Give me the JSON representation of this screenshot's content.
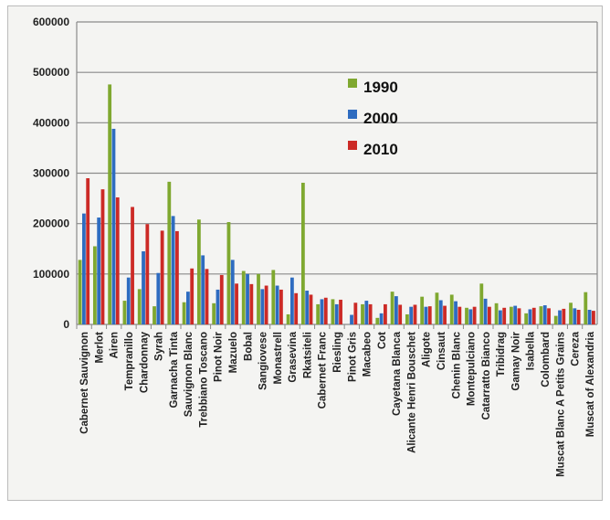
{
  "chart_data": {
    "type": "bar",
    "title": "",
    "xlabel": "",
    "ylabel": "",
    "ylim": [
      0,
      600000
    ],
    "yticks": [
      "0",
      "100000",
      "200000",
      "300000",
      "400000",
      "500000",
      "600000"
    ],
    "grid": true,
    "legend_position": "top-center",
    "categories": [
      "Cabernet Sauvignon",
      "Merlot",
      "Airen",
      "Tempranillo",
      "Chardonnay",
      "Syrah",
      "Garnacha Tinta",
      "Sauvignon Blanc",
      "Trebbiano Toscano",
      "Pinot Noir",
      "Mazuelo",
      "Bobal",
      "Sangiovese",
      "Monastrell",
      "Grasevina",
      "Rkatsiteli",
      "Cabernet Franc",
      "Riesling",
      "Pinot Gris",
      "Macabeo",
      "Cot",
      "Cayetana Blanca",
      "Alicante Henri Bouschet",
      "Aligote",
      "Cinsaut",
      "Chenin Blanc",
      "Montepulciano",
      "Catarratto Bianco",
      "Tribidrag",
      "Gamay Noir",
      "Isabella",
      "Colombard",
      "Muscat Blanc A Petits Grains",
      "Cereza",
      "Muscat of Alexandria"
    ],
    "series": [
      {
        "name": "1990",
        "color": "#7fa830",
        "values": [
          128000,
          155000,
          476000,
          47000,
          70000,
          36000,
          283000,
          44000,
          208000,
          42000,
          203000,
          106000,
          100000,
          108000,
          20000,
          281000,
          40000,
          50000,
          0,
          40000,
          13000,
          65000,
          20000,
          55000,
          63000,
          59000,
          33000,
          81000,
          42000,
          35000,
          22000,
          36000,
          17000,
          43000,
          64000
        ]
      },
      {
        "name": "2000",
        "color": "#2e6cc0",
        "values": [
          220000,
          212000,
          388000,
          93000,
          145000,
          102000,
          215000,
          65000,
          137000,
          69000,
          128000,
          100000,
          70000,
          77000,
          93000,
          67000,
          50000,
          40000,
          19000,
          47000,
          22000,
          56000,
          35000,
          35000,
          48000,
          46000,
          30000,
          51000,
          28000,
          37000,
          30000,
          38000,
          28000,
          32000,
          29000
        ]
      },
      {
        "name": "2010",
        "color": "#cc2a26",
        "values": [
          290000,
          268000,
          252000,
          233000,
          199000,
          186000,
          185000,
          111000,
          110000,
          98000,
          81000,
          80000,
          77000,
          69000,
          62000,
          59000,
          53000,
          49000,
          43000,
          40000,
          40000,
          39000,
          39000,
          36000,
          37000,
          35000,
          35000,
          35000,
          33000,
          32000,
          33000,
          32000,
          31000,
          29000,
          27000
        ]
      }
    ]
  }
}
